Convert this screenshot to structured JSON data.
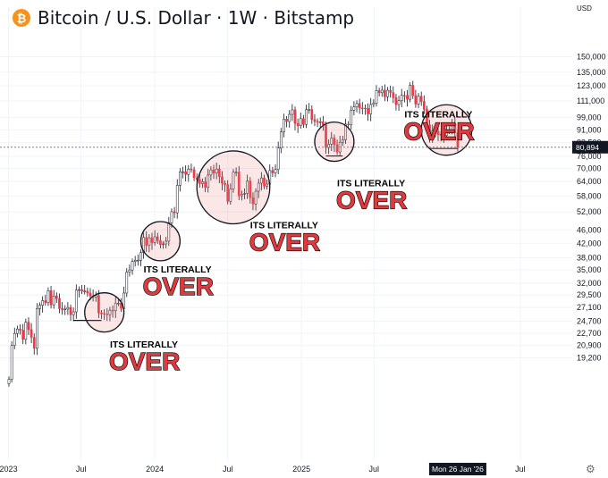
{
  "header": {
    "title": "Bitcoin / U.S. Dollar · 1W · Bitstamp",
    "logo_icon": "bitcoin-logo-icon",
    "logo_color": "#f7931a"
  },
  "chart_data": {
    "type": "candlestick",
    "title": "Bitcoin / U.S. Dollar · 1W · Bitstamp",
    "price_axis": {
      "currency_label": "USD",
      "ticks": [
        "150,000",
        "135,000",
        "123,000",
        "111,000",
        "99,000",
        "91,000",
        "83,500",
        "76,000",
        "70,000",
        "64,000",
        "58,000",
        "52,000",
        "46,000",
        "42,000",
        "38,000",
        "35,000",
        "32,000",
        "29,500",
        "27,100",
        "24,700",
        "22,700",
        "20,900",
        "19,200"
      ],
      "scale": "log",
      "range": [
        18500,
        158000
      ]
    },
    "time_axis": {
      "ticks": [
        "2023",
        "Jul",
        "2024",
        "Jul",
        "2025",
        "Jul",
        "Jul"
      ],
      "crosshair_label": "Mon 26 Jan '26",
      "range": [
        "2023-01-02",
        "2026-11-30"
      ]
    },
    "current_price": "80,894",
    "current_price_value": 80894,
    "colors": {
      "up": "#089981",
      "down": "#f23645",
      "wick": "#131722",
      "grid": "#f0f3fa",
      "current_price_line": "#787b86"
    },
    "series": [
      {
        "t": "2023-01-02",
        "v": 16600
      },
      {
        "t": "2023-01-09",
        "v": 20900
      },
      {
        "t": "2023-01-16",
        "v": 22700
      },
      {
        "t": "2023-01-23",
        "v": 23400
      },
      {
        "t": "2023-01-30",
        "v": 23200
      },
      {
        "t": "2023-02-06",
        "v": 21800
      },
      {
        "t": "2023-02-13",
        "v": 24500
      },
      {
        "t": "2023-02-20",
        "v": 23300
      },
      {
        "t": "2023-02-27",
        "v": 22100
      },
      {
        "t": "2023-03-06",
        "v": 20500
      },
      {
        "t": "2023-03-13",
        "v": 26900
      },
      {
        "t": "2023-03-20",
        "v": 27500
      },
      {
        "t": "2023-03-27",
        "v": 28400
      },
      {
        "t": "2023-04-03",
        "v": 28000
      },
      {
        "t": "2023-04-10",
        "v": 30400
      },
      {
        "t": "2023-04-17",
        "v": 27600
      },
      {
        "t": "2023-04-24",
        "v": 29300
      },
      {
        "t": "2023-05-01",
        "v": 28800
      },
      {
        "t": "2023-05-08",
        "v": 26900
      },
      {
        "t": "2023-05-15",
        "v": 26700
      },
      {
        "t": "2023-05-22",
        "v": 26800
      },
      {
        "t": "2023-05-29",
        "v": 27100
      },
      {
        "t": "2023-06-05",
        "v": 25800
      },
      {
        "t": "2023-06-12",
        "v": 26300
      },
      {
        "t": "2023-06-19",
        "v": 30500
      },
      {
        "t": "2023-06-26",
        "v": 30600
      },
      {
        "t": "2023-07-03",
        "v": 30300
      },
      {
        "t": "2023-07-10",
        "v": 30300
      },
      {
        "t": "2023-07-17",
        "v": 29900
      },
      {
        "t": "2023-07-24",
        "v": 29300
      },
      {
        "t": "2023-07-31",
        "v": 29100
      },
      {
        "t": "2023-08-07",
        "v": 29400
      },
      {
        "t": "2023-08-14",
        "v": 26100
      },
      {
        "t": "2023-08-21",
        "v": 26000
      },
      {
        "t": "2023-08-28",
        "v": 25900
      },
      {
        "t": "2023-09-04",
        "v": 25800
      },
      {
        "t": "2023-09-11",
        "v": 26600
      },
      {
        "t": "2023-09-18",
        "v": 26500
      },
      {
        "t": "2023-09-25",
        "v": 27900
      },
      {
        "t": "2023-10-02",
        "v": 27900
      },
      {
        "t": "2023-10-09",
        "v": 26900
      },
      {
        "t": "2023-10-16",
        "v": 29900
      },
      {
        "t": "2023-10-23",
        "v": 34500
      },
      {
        "t": "2023-10-30",
        "v": 35000
      },
      {
        "t": "2023-11-06",
        "v": 37100
      },
      {
        "t": "2023-11-13",
        "v": 37400
      },
      {
        "t": "2023-11-20",
        "v": 37400
      },
      {
        "t": "2023-11-27",
        "v": 39400
      },
      {
        "t": "2023-12-04",
        "v": 43700
      },
      {
        "t": "2023-12-11",
        "v": 41400
      },
      {
        "t": "2023-12-18",
        "v": 43600
      },
      {
        "t": "2023-12-25",
        "v": 42200
      },
      {
        "t": "2024-01-01",
        "v": 43900
      },
      {
        "t": "2024-01-08",
        "v": 42800
      },
      {
        "t": "2024-01-15",
        "v": 41600
      },
      {
        "t": "2024-01-22",
        "v": 41800
      },
      {
        "t": "2024-01-29",
        "v": 42600
      },
      {
        "t": "2024-02-05",
        "v": 48300
      },
      {
        "t": "2024-02-12",
        "v": 52100
      },
      {
        "t": "2024-02-19",
        "v": 51700
      },
      {
        "t": "2024-02-26",
        "v": 62400
      },
      {
        "t": "2024-03-04",
        "v": 68400
      },
      {
        "t": "2024-03-11",
        "v": 68400
      },
      {
        "t": "2024-03-18",
        "v": 67200
      },
      {
        "t": "2024-03-25",
        "v": 69700
      },
      {
        "t": "2024-04-01",
        "v": 69400
      },
      {
        "t": "2024-04-08",
        "v": 65700
      },
      {
        "t": "2024-04-15",
        "v": 64900
      },
      {
        "t": "2024-04-22",
        "v": 63100
      },
      {
        "t": "2024-04-29",
        "v": 63900
      },
      {
        "t": "2024-05-06",
        "v": 61500
      },
      {
        "t": "2024-05-13",
        "v": 66900
      },
      {
        "t": "2024-05-20",
        "v": 69300
      },
      {
        "t": "2024-05-27",
        "v": 67800
      },
      {
        "t": "2024-06-03",
        "v": 69700
      },
      {
        "t": "2024-06-10",
        "v": 66200
      },
      {
        "t": "2024-06-17",
        "v": 63200
      },
      {
        "t": "2024-06-24",
        "v": 62700
      },
      {
        "t": "2024-07-01",
        "v": 55900
      },
      {
        "t": "2024-07-08",
        "v": 60800
      },
      {
        "t": "2024-07-15",
        "v": 68200
      },
      {
        "t": "2024-07-22",
        "v": 68200
      },
      {
        "t": "2024-07-29",
        "v": 58100
      },
      {
        "t": "2024-08-05",
        "v": 58700
      },
      {
        "t": "2024-08-12",
        "v": 59000
      },
      {
        "t": "2024-08-19",
        "v": 64200
      },
      {
        "t": "2024-08-26",
        "v": 57300
      },
      {
        "t": "2024-09-02",
        "v": 54900
      },
      {
        "t": "2024-09-09",
        "v": 59900
      },
      {
        "t": "2024-09-16",
        "v": 63300
      },
      {
        "t": "2024-09-23",
        "v": 65600
      },
      {
        "t": "2024-09-30",
        "v": 62000
      },
      {
        "t": "2024-10-07",
        "v": 62900
      },
      {
        "t": "2024-10-14",
        "v": 69000
      },
      {
        "t": "2024-10-21",
        "v": 67900
      },
      {
        "t": "2024-10-28",
        "v": 69500
      },
      {
        "t": "2024-11-04",
        "v": 80400
      },
      {
        "t": "2024-11-11",
        "v": 89800
      },
      {
        "t": "2024-11-18",
        "v": 98000
      },
      {
        "t": "2024-11-25",
        "v": 96400
      },
      {
        "t": "2024-12-02",
        "v": 101200
      },
      {
        "t": "2024-12-09",
        "v": 104400
      },
      {
        "t": "2024-12-16",
        "v": 95200
      },
      {
        "t": "2024-12-23",
        "v": 93700
      },
      {
        "t": "2024-12-30",
        "v": 98300
      },
      {
        "t": "2025-01-06",
        "v": 94500
      },
      {
        "t": "2025-01-13",
        "v": 104500
      },
      {
        "t": "2025-01-20",
        "v": 104700
      },
      {
        "t": "2025-01-27",
        "v": 97700
      },
      {
        "t": "2025-02-03",
        "v": 96500
      },
      {
        "t": "2025-02-10",
        "v": 96100
      },
      {
        "t": "2025-02-17",
        "v": 96200
      },
      {
        "t": "2025-02-24",
        "v": 94200
      },
      {
        "t": "2025-03-03",
        "v": 80700
      },
      {
        "t": "2025-03-10",
        "v": 82600
      },
      {
        "t": "2025-03-17",
        "v": 86100
      },
      {
        "t": "2025-03-24",
        "v": 82300
      },
      {
        "t": "2025-03-31",
        "v": 78300
      },
      {
        "t": "2025-04-07",
        "v": 83700
      },
      {
        "t": "2025-04-14",
        "v": 85100
      },
      {
        "t": "2025-04-21",
        "v": 94700
      },
      {
        "t": "2025-04-28",
        "v": 94300
      },
      {
        "t": "2025-05-05",
        "v": 104100
      },
      {
        "t": "2025-05-12",
        "v": 106500
      },
      {
        "t": "2025-05-19",
        "v": 109000
      },
      {
        "t": "2025-05-26",
        "v": 105700
      },
      {
        "t": "2025-06-02",
        "v": 105600
      },
      {
        "t": "2025-06-09",
        "v": 105500
      },
      {
        "t": "2025-06-16",
        "v": 101500
      },
      {
        "t": "2025-06-23",
        "v": 108300
      },
      {
        "t": "2025-06-30",
        "v": 109200
      },
      {
        "t": "2025-07-07",
        "v": 119100
      },
      {
        "t": "2025-07-14",
        "v": 117300
      },
      {
        "t": "2025-07-21",
        "v": 119400
      },
      {
        "t": "2025-07-28",
        "v": 114200
      },
      {
        "t": "2025-08-04",
        "v": 119300
      },
      {
        "t": "2025-08-11",
        "v": 117500
      },
      {
        "t": "2025-08-18",
        "v": 113500
      },
      {
        "t": "2025-08-25",
        "v": 108200
      },
      {
        "t": "2025-09-01",
        "v": 111100
      },
      {
        "t": "2025-09-08",
        "v": 115300
      },
      {
        "t": "2025-09-15",
        "v": 115200
      },
      {
        "t": "2025-09-22",
        "v": 112200
      },
      {
        "t": "2025-09-29",
        "v": 123500
      },
      {
        "t": "2025-10-06",
        "v": 115000
      },
      {
        "t": "2025-10-13",
        "v": 108600
      },
      {
        "t": "2025-10-20",
        "v": 114500
      },
      {
        "t": "2025-10-27",
        "v": 110500
      },
      {
        "t": "2025-11-03",
        "v": 104700
      },
      {
        "t": "2025-11-10",
        "v": 94200
      },
      {
        "t": "2025-11-17",
        "v": 86700
      },
      {
        "t": "2025-11-24",
        "v": 90400
      },
      {
        "t": "2025-12-01",
        "v": 90200
      },
      {
        "t": "2025-12-08",
        "v": 88200
      },
      {
        "t": "2025-12-15",
        "v": 88400
      },
      {
        "t": "2025-12-22",
        "v": 87600
      },
      {
        "t": "2025-12-29",
        "v": 91200
      },
      {
        "t": "2026-01-05",
        "v": 90500
      },
      {
        "t": "2026-01-12",
        "v": 95100
      },
      {
        "t": "2026-01-19",
        "v": 89300
      },
      {
        "t": "2026-01-26",
        "v": 80894
      }
    ],
    "circles": [
      {
        "center_t": "2023-08-28",
        "center_v": 26200,
        "radius_weeks": 7
      },
      {
        "center_t": "2024-01-15",
        "center_v": 42600,
        "radius_weeks": 7
      },
      {
        "center_t": "2024-07-15",
        "center_v": 61500,
        "radius_weeks": 13
      },
      {
        "center_t": "2025-03-24",
        "center_v": 84000,
        "radius_weeks": 7
      },
      {
        "center_t": "2025-12-29",
        "center_v": 91000,
        "radius_weeks": 9
      }
    ],
    "annotations": [
      {
        "line1": "ITS LITERALLY",
        "line2": "OVER"
      },
      {
        "line1": "ITS LITERALLY",
        "line2": "OVER"
      },
      {
        "line1": "ITS LITERALLY",
        "line2": "OVER"
      },
      {
        "line1": "ITS LITERALLY",
        "line2": "OVER"
      },
      {
        "line1": "ITS LITERALLY",
        "line2": "OVER"
      }
    ],
    "support_lines": [
      {
        "t1": "2023-06-12",
        "t2": "2023-08-21",
        "v": 24800
      },
      {
        "t1": "2025-03-03",
        "t2": "2025-04-14",
        "v": 76200
      },
      {
        "t1": "2025-11-17",
        "t2": "2026-01-26",
        "v": 80200
      }
    ],
    "grid": true
  },
  "controls": {
    "settings_icon": "gear-icon"
  }
}
